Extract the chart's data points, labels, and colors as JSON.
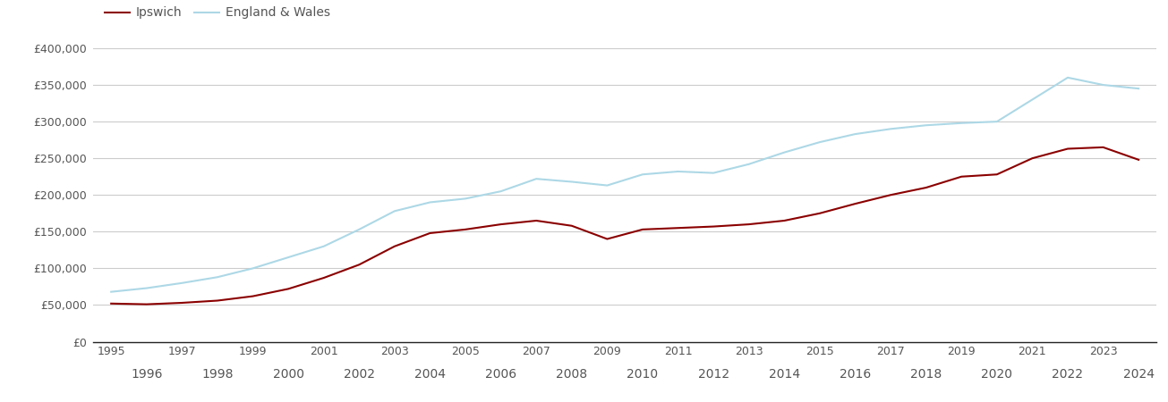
{
  "ipswich": {
    "years": [
      1995,
      1996,
      1997,
      1998,
      1999,
      2000,
      2001,
      2002,
      2003,
      2004,
      2005,
      2006,
      2007,
      2008,
      2009,
      2010,
      2011,
      2012,
      2013,
      2014,
      2015,
      2016,
      2017,
      2018,
      2019,
      2020,
      2021,
      2022,
      2023,
      2024
    ],
    "values": [
      52000,
      51000,
      53000,
      56000,
      62000,
      72000,
      87000,
      105000,
      130000,
      148000,
      153000,
      160000,
      165000,
      158000,
      140000,
      153000,
      155000,
      157000,
      160000,
      165000,
      175000,
      188000,
      200000,
      210000,
      225000,
      228000,
      250000,
      263000,
      265000,
      248000
    ]
  },
  "england_wales": {
    "years": [
      1995,
      1996,
      1997,
      1998,
      1999,
      2000,
      2001,
      2002,
      2003,
      2004,
      2005,
      2006,
      2007,
      2008,
      2009,
      2010,
      2011,
      2012,
      2013,
      2014,
      2015,
      2016,
      2017,
      2018,
      2019,
      2020,
      2021,
      2022,
      2023,
      2024
    ],
    "values": [
      68000,
      73000,
      80000,
      88000,
      100000,
      115000,
      130000,
      153000,
      178000,
      190000,
      195000,
      205000,
      222000,
      218000,
      213000,
      228000,
      232000,
      230000,
      242000,
      258000,
      272000,
      283000,
      290000,
      295000,
      298000,
      300000,
      330000,
      360000,
      350000,
      345000
    ]
  },
  "ipswich_color": "#8b0000",
  "england_wales_color": "#add8e6",
  "background_color": "#ffffff",
  "grid_color": "#cccccc",
  "ylim": [
    0,
    400000
  ],
  "yticks": [
    0,
    50000,
    100000,
    150000,
    200000,
    250000,
    300000,
    350000,
    400000
  ],
  "legend_ipswich": "Ipswich",
  "legend_ew": "England & Wales",
  "line_width": 1.5,
  "font_color": "#555555",
  "font_size": 9
}
